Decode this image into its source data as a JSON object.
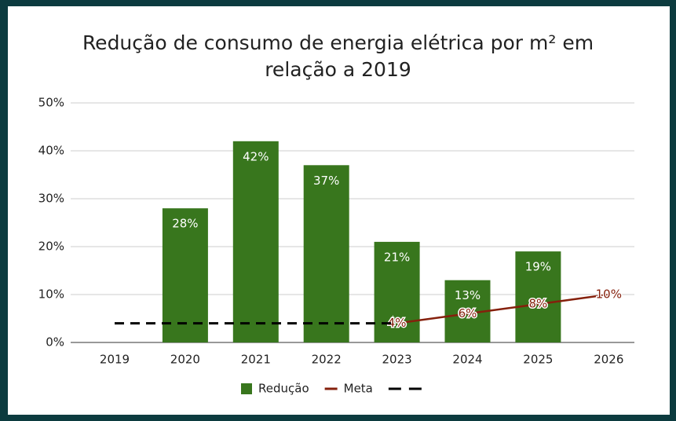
{
  "chart_data": {
    "type": "bar",
    "title": "Redução de consumo de energia elétrica por m² em relação a 2019",
    "categories": [
      "2019",
      "2020",
      "2021",
      "2022",
      "2023",
      "2024",
      "2025",
      "2026"
    ],
    "series": [
      {
        "name": "Redução",
        "type": "bar",
        "color": "#38761d",
        "values": [
          null,
          28,
          42,
          37,
          21,
          13,
          19,
          null
        ],
        "value_labels": [
          null,
          "28%",
          "42%",
          "37%",
          "21%",
          "13%",
          "19%",
          null
        ]
      },
      {
        "name": "Meta",
        "type": "line",
        "color": "#85200c",
        "values": [
          null,
          null,
          null,
          null,
          4,
          6,
          8,
          10
        ],
        "value_labels": [
          null,
          null,
          null,
          null,
          "4%",
          "6%",
          "8%",
          "10%"
        ]
      },
      {
        "type": "line",
        "dashed": true,
        "color": "#000000",
        "values": [
          4,
          4,
          4,
          4,
          4,
          null,
          null,
          null
        ]
      }
    ],
    "ylim": [
      0,
      50
    ],
    "yticks": [
      {
        "value": 0,
        "label": "0%"
      },
      {
        "value": 10,
        "label": "10%"
      },
      {
        "value": 20,
        "label": "20%"
      },
      {
        "value": 30,
        "label": "30%"
      },
      {
        "value": 40,
        "label": "40%"
      },
      {
        "value": 50,
        "label": "50%"
      }
    ],
    "grid": true,
    "legend": "bottom"
  }
}
